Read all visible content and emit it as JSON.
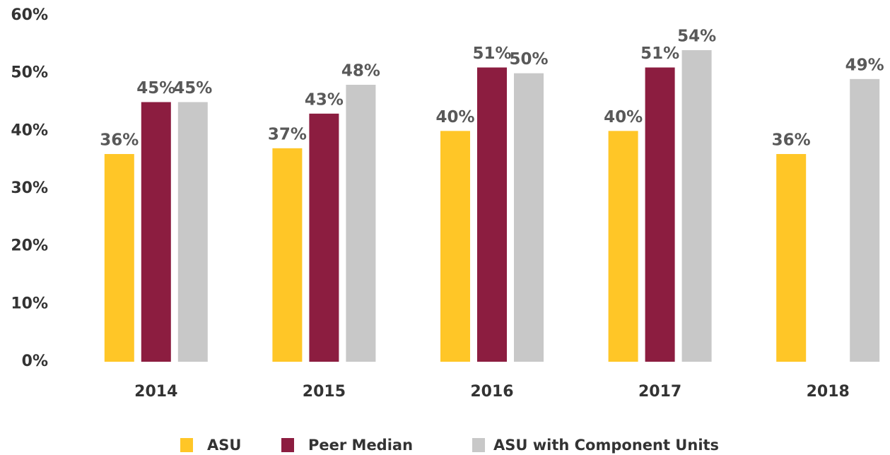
{
  "chart_data": {
    "type": "bar",
    "categories": [
      "2014",
      "2015",
      "2016",
      "2017",
      "2018"
    ],
    "series": [
      {
        "name": "ASU",
        "color": "#FFC627",
        "values": [
          36,
          37,
          40,
          40,
          36
        ],
        "value_labels": [
          "36%",
          "37%",
          "40%",
          "40%",
          "36%"
        ]
      },
      {
        "name": "Peer Median",
        "color": "#8C1D40",
        "values": [
          45,
          43,
          51,
          51,
          null
        ],
        "value_labels": [
          "45%",
          "43%",
          "51%",
          "51%",
          null
        ]
      },
      {
        "name": "ASU with Component Units",
        "color": "#C8C8C8",
        "values": [
          45,
          48,
          50,
          54,
          49
        ],
        "value_labels": [
          "45%",
          "48%",
          "50%",
          "54%",
          "49%"
        ]
      }
    ],
    "ylim": [
      0,
      60
    ],
    "yticks": [
      {
        "value": 0,
        "label": "0%"
      },
      {
        "value": 10,
        "label": "10%"
      },
      {
        "value": 20,
        "label": "20%"
      },
      {
        "value": 30,
        "label": "30%"
      },
      {
        "value": 40,
        "label": "40%"
      },
      {
        "value": 50,
        "label": "50%"
      },
      {
        "value": 60,
        "label": "60%"
      }
    ],
    "grid": false,
    "legend": "bottom"
  }
}
